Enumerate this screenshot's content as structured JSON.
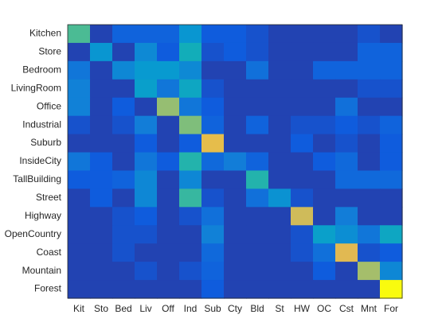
{
  "chart_data": {
    "type": "heatmap",
    "title": "",
    "xlabel": "",
    "ylabel": "",
    "colormap": "parula",
    "color_range": [
      0,
      1
    ],
    "row_labels": [
      "Kitchen",
      "Store",
      "Bedroom",
      "LivingRoom",
      "Office",
      "Industrial",
      "Suburb",
      "InsideCity",
      "TallBuilding",
      "Street",
      "Highway",
      "OpenCountry",
      "Coast",
      "Mountain",
      "Forest"
    ],
    "col_labels": [
      "Kit",
      "Sto",
      "Bed",
      "Liv",
      "Off",
      "Ind",
      "Sub",
      "Cty",
      "Bld",
      "St",
      "HW",
      "OC",
      "Cst",
      "Mnt",
      "For"
    ],
    "values": [
      [
        0.58,
        0.05,
        0.12,
        0.12,
        0.12,
        0.32,
        0.1,
        0.1,
        0.08,
        0.05,
        0.05,
        0.05,
        0.05,
        0.08,
        0.05
      ],
      [
        0.05,
        0.32,
        0.05,
        0.26,
        0.1,
        0.47,
        0.08,
        0.1,
        0.08,
        0.05,
        0.05,
        0.05,
        0.05,
        0.12,
        0.12
      ],
      [
        0.18,
        0.05,
        0.25,
        0.34,
        0.34,
        0.26,
        0.05,
        0.05,
        0.16,
        0.05,
        0.05,
        0.12,
        0.12,
        0.12,
        0.12
      ],
      [
        0.22,
        0.05,
        0.05,
        0.37,
        0.18,
        0.42,
        0.08,
        0.05,
        0.05,
        0.05,
        0.05,
        0.05,
        0.05,
        0.08,
        0.08
      ],
      [
        0.22,
        0.05,
        0.1,
        0.05,
        0.68,
        0.18,
        0.1,
        0.05,
        0.05,
        0.05,
        0.05,
        0.05,
        0.16,
        0.05,
        0.05
      ],
      [
        0.08,
        0.05,
        0.08,
        0.2,
        0.05,
        0.65,
        0.12,
        0.05,
        0.12,
        0.05,
        0.08,
        0.08,
        0.1,
        0.08,
        0.12
      ],
      [
        0.05,
        0.05,
        0.05,
        0.1,
        0.05,
        0.1,
        0.82,
        0.05,
        0.05,
        0.05,
        0.1,
        0.05,
        0.08,
        0.05,
        0.1
      ],
      [
        0.18,
        0.1,
        0.05,
        0.18,
        0.1,
        0.52,
        0.14,
        0.2,
        0.12,
        0.05,
        0.05,
        0.1,
        0.14,
        0.05,
        0.1
      ],
      [
        0.1,
        0.1,
        0.12,
        0.25,
        0.05,
        0.25,
        0.05,
        0.05,
        0.52,
        0.05,
        0.05,
        0.05,
        0.14,
        0.14,
        0.14
      ],
      [
        0.05,
        0.1,
        0.05,
        0.25,
        0.05,
        0.55,
        0.08,
        0.05,
        0.16,
        0.3,
        0.08,
        0.05,
        0.05,
        0.05,
        0.05
      ],
      [
        0.05,
        0.05,
        0.08,
        0.1,
        0.05,
        0.08,
        0.16,
        0.05,
        0.05,
        0.05,
        0.77,
        0.05,
        0.2,
        0.05,
        0.05
      ],
      [
        0.05,
        0.05,
        0.08,
        0.08,
        0.05,
        0.05,
        0.22,
        0.05,
        0.05,
        0.05,
        0.08,
        0.38,
        0.28,
        0.18,
        0.42
      ],
      [
        0.05,
        0.05,
        0.08,
        0.05,
        0.05,
        0.05,
        0.14,
        0.05,
        0.05,
        0.05,
        0.08,
        0.16,
        0.8,
        0.08,
        0.1
      ],
      [
        0.05,
        0.05,
        0.05,
        0.08,
        0.05,
        0.08,
        0.12,
        0.05,
        0.05,
        0.05,
        0.05,
        0.1,
        0.05,
        0.7,
        0.25
      ],
      [
        0.05,
        0.05,
        0.05,
        0.05,
        0.05,
        0.05,
        0.1,
        0.05,
        0.05,
        0.05,
        0.05,
        0.05,
        0.05,
        0.05,
        1.0
      ]
    ],
    "grid": false,
    "legend": "none"
  }
}
